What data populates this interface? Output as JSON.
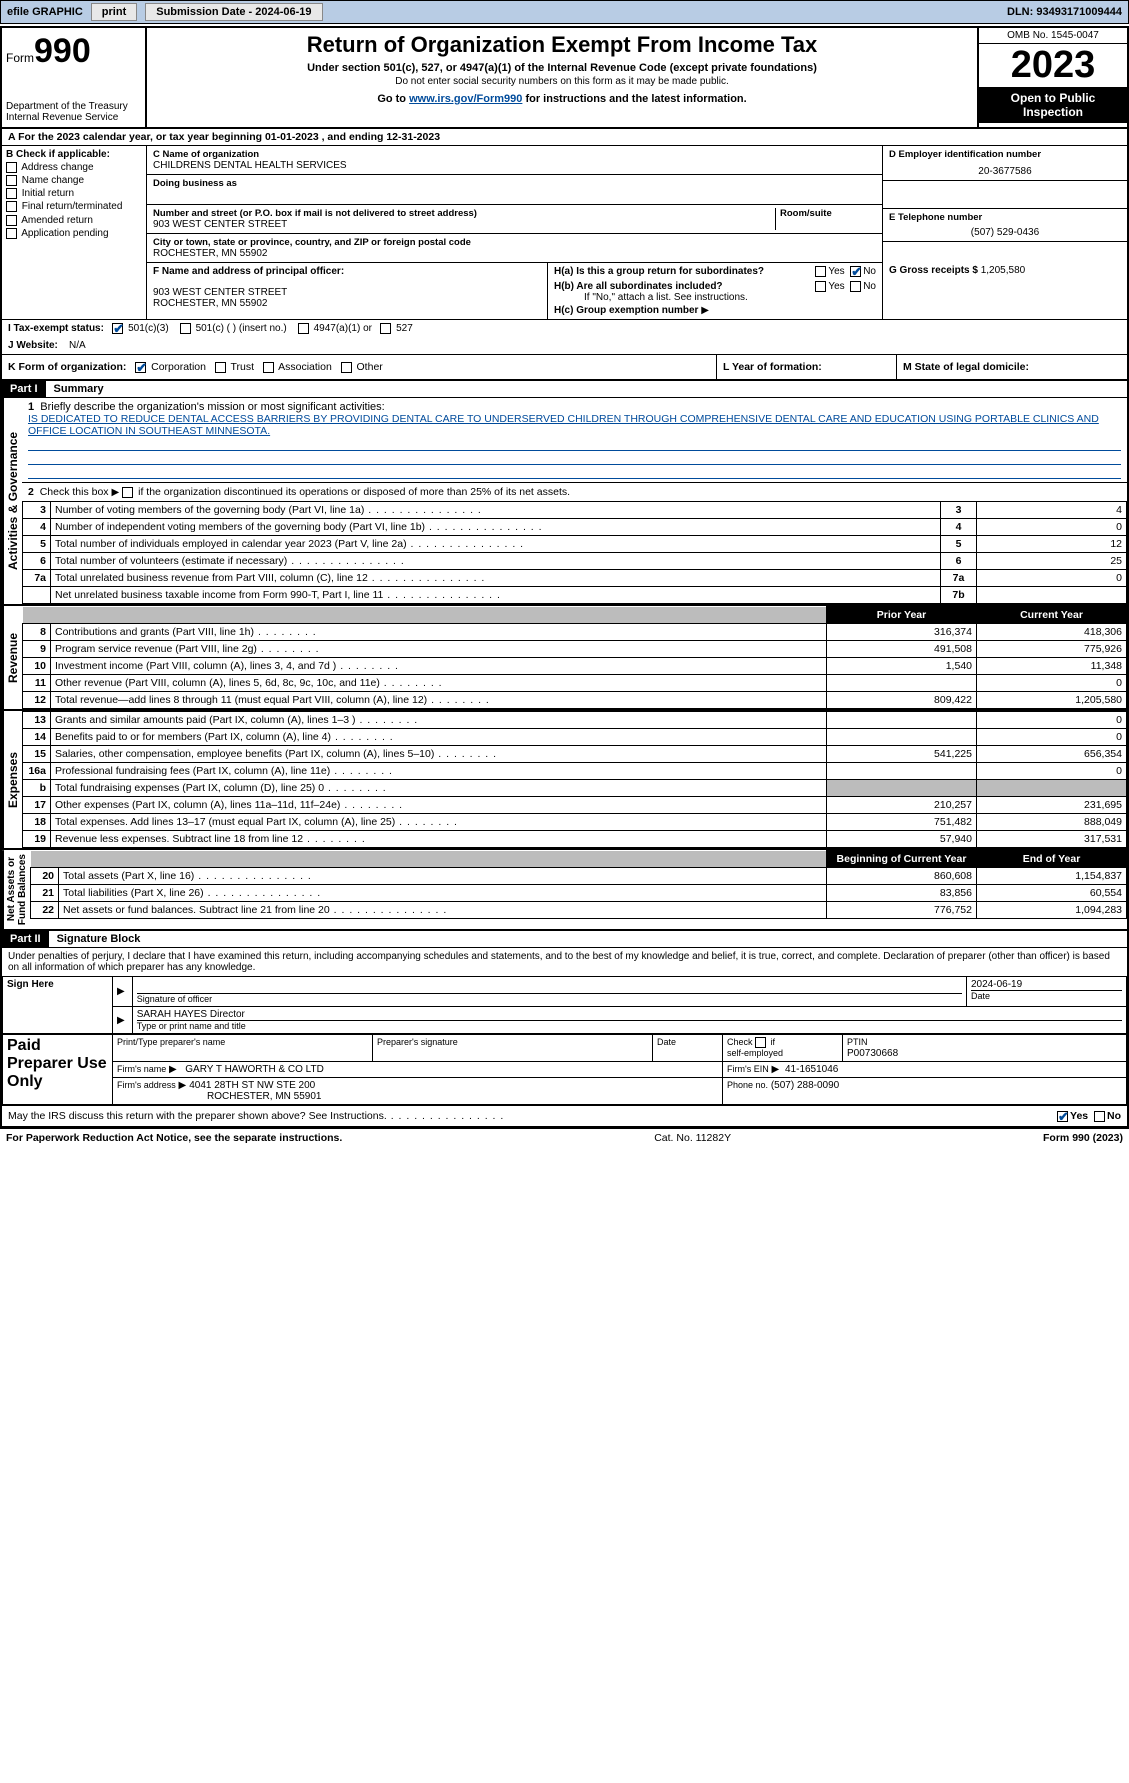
{
  "topbar": {
    "efile_label": "efile GRAPHIC",
    "print_btn": "print",
    "submission_label": "Submission Date - 2024-06-19",
    "dln_label": "DLN: 93493171009444"
  },
  "header": {
    "form_word": "Form",
    "form_number": "990",
    "dept1": "Department of the Treasury",
    "dept2": "Internal Revenue Service",
    "title": "Return of Organization Exempt From Income Tax",
    "subtitle": "Under section 501(c), 527, or 4947(a)(1) of the Internal Revenue Code (except private foundations)",
    "warn": "Do not enter social security numbers on this form as it may be made public.",
    "goto_pre": "Go to ",
    "goto_link": "www.irs.gov/Form990",
    "goto_post": " for instructions and the latest information.",
    "omb": "OMB No. 1545-0047",
    "year": "2023",
    "inspect1": "Open to Public",
    "inspect2": "Inspection"
  },
  "rowA": "A For the 2023 calendar year, or tax year beginning 01-01-2023    , and ending 12-31-2023",
  "sectionB": {
    "header": "B Check if applicable:",
    "items": [
      "Address change",
      "Name change",
      "Initial return",
      "Final return/terminated",
      "Amended return",
      "Application pending"
    ]
  },
  "sectionC": {
    "name_label": "C Name of organization",
    "name": "CHILDRENS DENTAL HEALTH SERVICES",
    "dba_label": "Doing business as",
    "street_label": "Number and street (or P.O. box if mail is not delivered to street address)",
    "room_label": "Room/suite",
    "street": "903 WEST CENTER STREET",
    "city_label": "City or town, state or province, country, and ZIP or foreign postal code",
    "city": "ROCHESTER, MN  55902"
  },
  "sectionD": {
    "label": "D Employer identification number",
    "value": "20-3677586"
  },
  "sectionE": {
    "label": "E Telephone number",
    "value": "(507) 529-0436"
  },
  "sectionG": {
    "label": "G Gross receipts $",
    "value": "1,205,580"
  },
  "sectionF": {
    "label": "F  Name and address of principal officer:",
    "line1": "903 WEST CENTER STREET",
    "line2": "ROCHESTER, MN  55902"
  },
  "sectionH": {
    "ha": "H(a)  Is this a group return for subordinates?",
    "hb": "H(b)  Are all subordinates included?",
    "hb_note": "If \"No,\" attach a list. See instructions.",
    "hc": "H(c)  Group exemption number",
    "yes": "Yes",
    "no": "No"
  },
  "sectionI": {
    "label": "I    Tax-exempt status:",
    "opt1": "501(c)(3)",
    "opt2": "501(c) (  ) (insert no.)",
    "opt3": "4947(a)(1) or",
    "opt4": "527"
  },
  "sectionJ": {
    "label": "J    Website:",
    "value": "N/A"
  },
  "rowK": {
    "label": "K Form of organization:",
    "opts": [
      "Corporation",
      "Trust",
      "Association",
      "Other"
    ],
    "L": "L Year of formation:",
    "M": "M State of legal domicile:"
  },
  "part1": {
    "header": "Part I",
    "title": "Summary",
    "side_ag": "Activities & Governance",
    "side_rev": "Revenue",
    "side_exp": "Expenses",
    "side_na": "Net Assets or\nFund Balances",
    "line1_label": "Briefly describe the organization's mission or most significant activities:",
    "mission": "IS DEDICATED TO REDUCE DENTAL ACCESS BARRIERS BY PROVIDING DENTAL CARE TO UNDERSERVED CHILDREN THROUGH COMPREHENSIVE DENTAL CARE AND EDUCATION USING PORTABLE CLINICS AND OFFICE LOCATION IN SOUTHEAST MINNESOTA.",
    "line2": "Check this box      if the organization discontinued its operations or disposed of more than 25% of its net assets.",
    "lines_ag": [
      {
        "n": "3",
        "t": "Number of voting members of the governing body (Part VI, line 1a)",
        "box": "3",
        "v": "4"
      },
      {
        "n": "4",
        "t": "Number of independent voting members of the governing body (Part VI, line 1b)",
        "box": "4",
        "v": "0"
      },
      {
        "n": "5",
        "t": "Total number of individuals employed in calendar year 2023 (Part V, line 2a)",
        "box": "5",
        "v": "12"
      },
      {
        "n": "6",
        "t": "Total number of volunteers (estimate if necessary)",
        "box": "6",
        "v": "25"
      },
      {
        "n": "7a",
        "t": "Total unrelated business revenue from Part VIII, column (C), line 12",
        "box": "7a",
        "v": "0"
      },
      {
        "n": "",
        "t": "Net unrelated business taxable income from Form 990-T, Part I, line 11",
        "box": "7b",
        "v": ""
      }
    ],
    "col_prior": "Prior Year",
    "col_current": "Current Year",
    "lines_rev": [
      {
        "n": "8",
        "t": "Contributions and grants (Part VIII, line 1h)",
        "p": "316,374",
        "c": "418,306"
      },
      {
        "n": "9",
        "t": "Program service revenue (Part VIII, line 2g)",
        "p": "491,508",
        "c": "775,926"
      },
      {
        "n": "10",
        "t": "Investment income (Part VIII, column (A), lines 3, 4, and 7d )",
        "p": "1,540",
        "c": "11,348"
      },
      {
        "n": "11",
        "t": "Other revenue (Part VIII, column (A), lines 5, 6d, 8c, 9c, 10c, and 11e)",
        "p": "",
        "c": "0"
      },
      {
        "n": "12",
        "t": "Total revenue—add lines 8 through 11 (must equal Part VIII, column (A), line 12)",
        "p": "809,422",
        "c": "1,205,580"
      }
    ],
    "lines_exp": [
      {
        "n": "13",
        "t": "Grants and similar amounts paid (Part IX, column (A), lines 1–3 )",
        "p": "",
        "c": "0"
      },
      {
        "n": "14",
        "t": "Benefits paid to or for members (Part IX, column (A), line 4)",
        "p": "",
        "c": "0"
      },
      {
        "n": "15",
        "t": "Salaries, other compensation, employee benefits (Part IX, column (A), lines 5–10)",
        "p": "541,225",
        "c": "656,354"
      },
      {
        "n": "16a",
        "t": "Professional fundraising fees (Part IX, column (A), line 11e)",
        "p": "",
        "c": "0"
      },
      {
        "n": "b",
        "t": "Total fundraising expenses (Part IX, column (D), line 25) 0",
        "p": "SHADE",
        "c": "SHADE"
      },
      {
        "n": "17",
        "t": "Other expenses (Part IX, column (A), lines 11a–11d, 11f–24e)",
        "p": "210,257",
        "c": "231,695"
      },
      {
        "n": "18",
        "t": "Total expenses. Add lines 13–17 (must equal Part IX, column (A), line 25)",
        "p": "751,482",
        "c": "888,049"
      },
      {
        "n": "19",
        "t": "Revenue less expenses. Subtract line 18 from line 12",
        "p": "57,940",
        "c": "317,531"
      }
    ],
    "col_begin": "Beginning of Current Year",
    "col_end": "End of Year",
    "lines_na": [
      {
        "n": "20",
        "t": "Total assets (Part X, line 16)",
        "p": "860,608",
        "c": "1,154,837"
      },
      {
        "n": "21",
        "t": "Total liabilities (Part X, line 26)",
        "p": "83,856",
        "c": "60,554"
      },
      {
        "n": "22",
        "t": "Net assets or fund balances. Subtract line 21 from line 20",
        "p": "776,752",
        "c": "1,094,283"
      }
    ]
  },
  "part2": {
    "header": "Part II",
    "title": "Signature Block",
    "declaration": "Under penalties of perjury, I declare that I have examined this return, including accompanying schedules and statements, and to the best of my knowledge and belief, it is true, correct, and complete. Declaration of preparer (other than officer) is based on all information of which preparer has any knowledge.",
    "sign_here": "Sign Here",
    "sig_officer": "Signature of officer",
    "sig_date": "2024-06-19",
    "officer_name": "SARAH HAYES  Director",
    "type_name": "Type or print name and title",
    "date_label": "Date",
    "paid_prep": "Paid Preparer Use Only",
    "print_prep": "Print/Type preparer's name",
    "prep_sig": "Preparer's signature",
    "check_self": "Check         if self-employed",
    "ptin_label": "PTIN",
    "ptin": "P00730668",
    "firm_name_label": "Firm's name",
    "firm_name": "GARY T HAWORTH & CO LTD",
    "firm_ein_label": "Firm's EIN",
    "firm_ein": "41-1651046",
    "firm_addr_label": "Firm's address",
    "firm_addr1": "4041 28TH ST NW STE 200",
    "firm_addr2": "ROCHESTER, MN  55901",
    "phone_label": "Phone no.",
    "phone": "(507) 288-0090",
    "discuss": "May the IRS discuss this return with the preparer shown above? See Instructions.",
    "yes": "Yes",
    "no": "No"
  },
  "footer": {
    "left": "For Paperwork Reduction Act Notice, see the separate instructions.",
    "mid": "Cat. No. 11282Y",
    "right": "Form 990 (2023)"
  }
}
